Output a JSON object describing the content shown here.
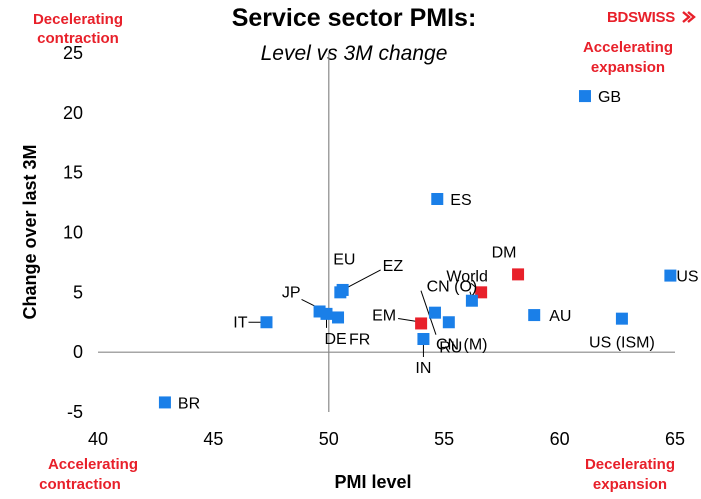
{
  "chart_data": {
    "type": "scatter",
    "title": "Service sector PMIs:",
    "subtitle": "Level vs 3M change",
    "xlabel": "PMI level",
    "ylabel": "Change over last 3M",
    "xlim": [
      40,
      65
    ],
    "ylim": [
      -5,
      25
    ],
    "xticks": [
      "40",
      "45",
      "50",
      "55",
      "60",
      "65"
    ],
    "yticks": [
      "-5",
      "0",
      "5",
      "10",
      "15",
      "20",
      "25"
    ],
    "grid": false,
    "colors": {
      "country": "#1a7fe8",
      "aggregate": "#e8202a",
      "quadrant_text": "#e8202a"
    },
    "quadrants": {
      "top_left": [
        "Decelerating",
        "contraction"
      ],
      "top_right": [
        "Accelerating",
        "expansion"
      ],
      "bottom_left": [
        "Accelerating",
        "contraction"
      ],
      "bottom_right": [
        "Decelerating",
        "expansion"
      ]
    },
    "points": [
      {
        "label": "GB",
        "x": 61.1,
        "y": 21.4,
        "group": "country"
      },
      {
        "label": "ES",
        "x": 54.7,
        "y": 12.8,
        "group": "country"
      },
      {
        "label": "US",
        "x": 64.8,
        "y": 6.4,
        "group": "country"
      },
      {
        "label": "DM",
        "x": 58.2,
        "y": 6.5,
        "group": "aggregate"
      },
      {
        "label": "World",
        "x": 56.6,
        "y": 5.0,
        "group": "aggregate"
      },
      {
        "label": "CN (O)",
        "x": 56.2,
        "y": 4.3,
        "group": "country"
      },
      {
        "label": "AU",
        "x": 58.9,
        "y": 3.1,
        "group": "country"
      },
      {
        "label": "US (ISM)",
        "x": 62.7,
        "y": 2.8,
        "group": "country"
      },
      {
        "label": "EU",
        "x": 50.5,
        "y": 5.0,
        "group": "country"
      },
      {
        "label": "EZ",
        "x": 50.6,
        "y": 5.2,
        "group": "country"
      },
      {
        "label": "JP",
        "x": 49.6,
        "y": 3.4,
        "group": "country"
      },
      {
        "label": "DE",
        "x": 49.9,
        "y": 3.2,
        "group": "country"
      },
      {
        "label": "FR",
        "x": 50.4,
        "y": 2.9,
        "group": "country"
      },
      {
        "label": "IT",
        "x": 47.3,
        "y": 2.5,
        "group": "country"
      },
      {
        "label": "EM",
        "x": 54.0,
        "y": 2.4,
        "group": "aggregate"
      },
      {
        "label": "IN",
        "x": 54.1,
        "y": 1.1,
        "group": "country"
      },
      {
        "label": "RU",
        "x": 55.2,
        "y": 2.5,
        "group": "country"
      },
      {
        "label": "CN (M)",
        "x": 54.6,
        "y": 3.3,
        "group": "country"
      },
      {
        "label": "BR",
        "x": 42.9,
        "y": -4.2,
        "group": "country"
      }
    ]
  },
  "brand": {
    "logo_text": "BDSWISS",
    "logo_icon": "swiss-arrow-icon"
  }
}
